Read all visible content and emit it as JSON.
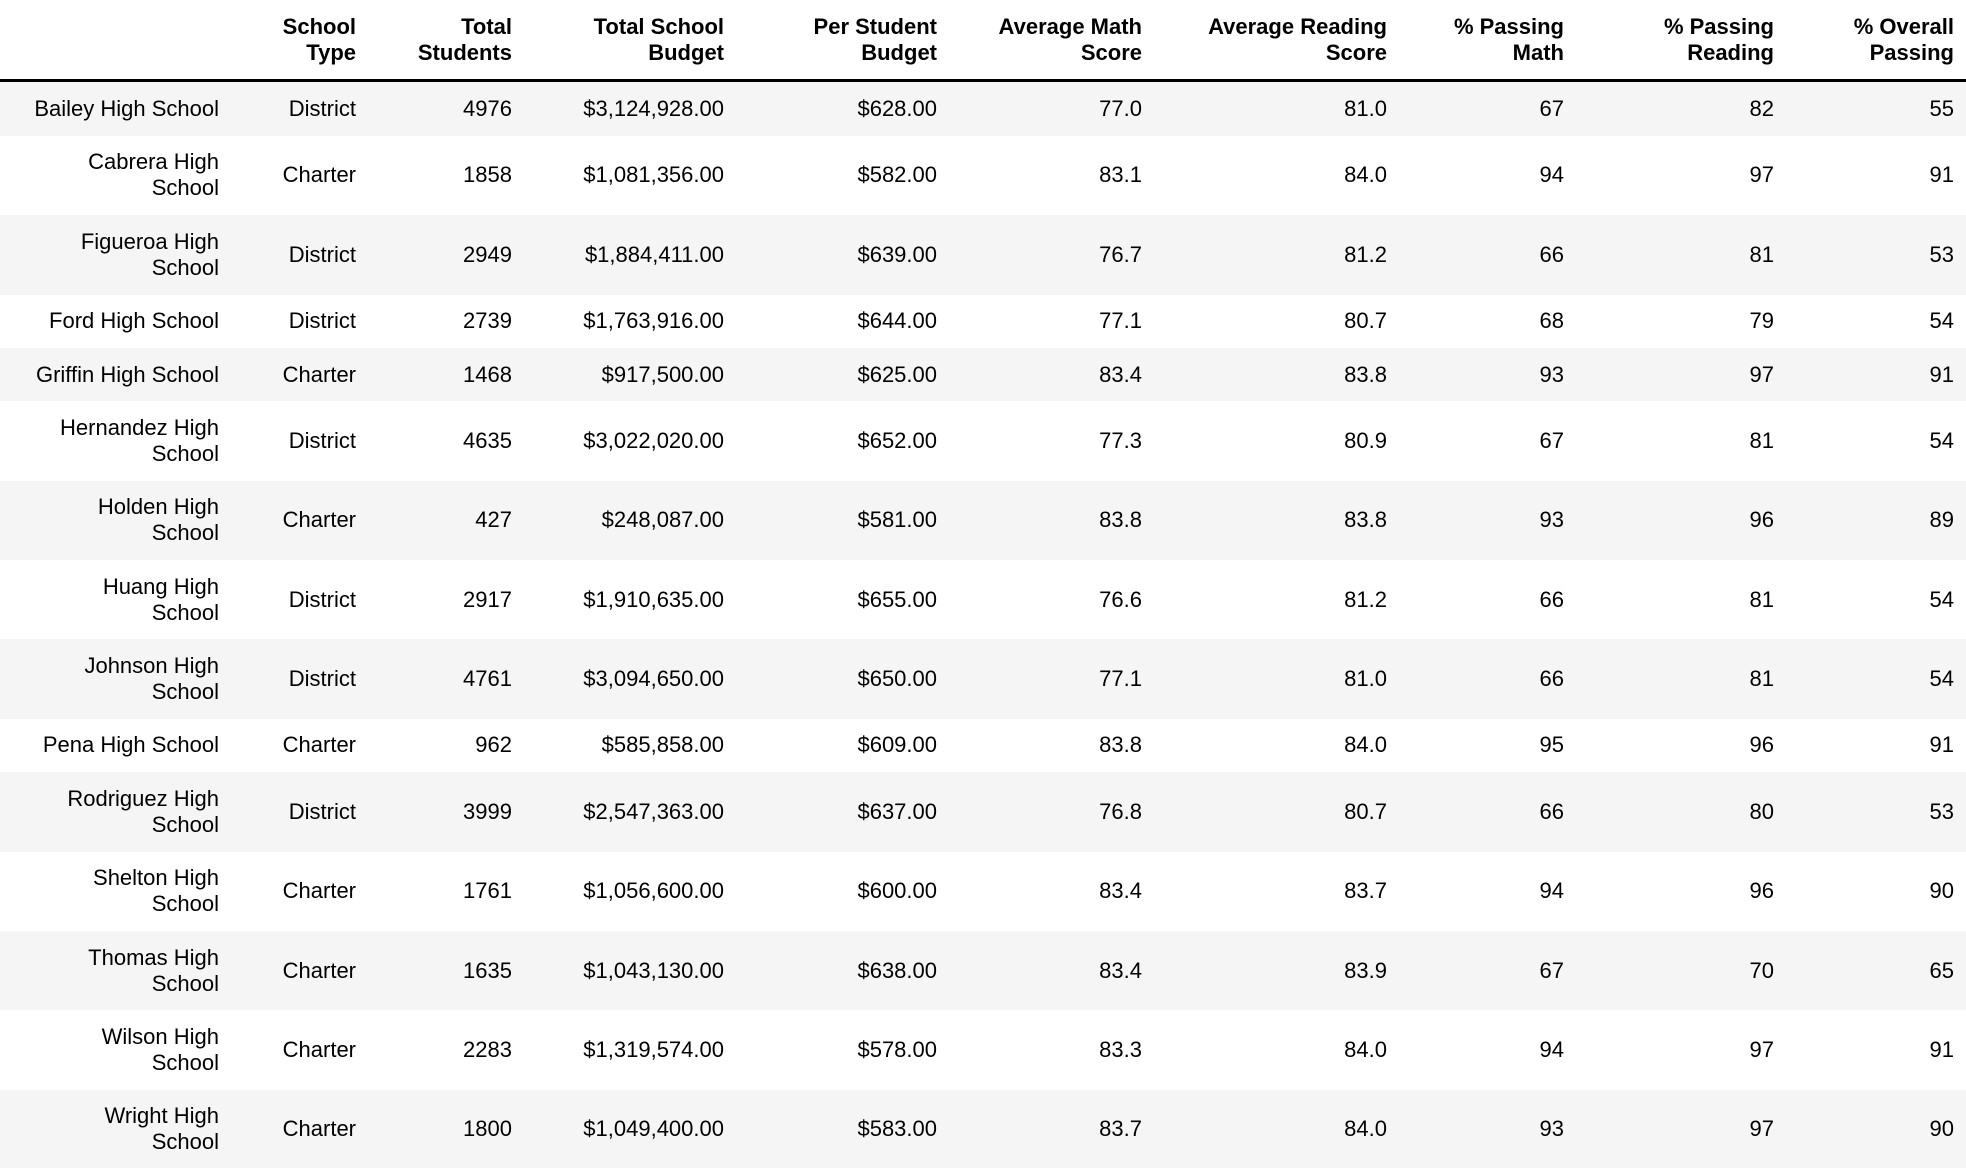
{
  "colors": {
    "stripe": "#f5f5f5",
    "text": "#000000",
    "background": "#ffffff",
    "header_border": "#000000"
  },
  "chart_data": {
    "type": "table",
    "columns": [
      {
        "id": "school_name",
        "label": ""
      },
      {
        "id": "school_type",
        "label": "School\nType"
      },
      {
        "id": "total_students",
        "label": "Total\nStudents"
      },
      {
        "id": "total_school_budget",
        "label": "Total School\nBudget"
      },
      {
        "id": "per_student_budget",
        "label": "Per Student\nBudget"
      },
      {
        "id": "average_math_score",
        "label": "Average Math\nScore"
      },
      {
        "id": "average_reading_score",
        "label": "Average Reading\nScore"
      },
      {
        "id": "pct_passing_math",
        "label": "% Passing\nMath"
      },
      {
        "id": "pct_passing_reading",
        "label": "% Passing\nReading"
      },
      {
        "id": "pct_overall_passing",
        "label": "% Overall\nPassing"
      }
    ],
    "rows": [
      {
        "name": "Bailey High School",
        "cells": [
          "District",
          "4976",
          "$3,124,928.00",
          "$628.00",
          "77.0",
          "81.0",
          "67",
          "82",
          "55"
        ]
      },
      {
        "name": "Cabrera High\nSchool",
        "cells": [
          "Charter",
          "1858",
          "$1,081,356.00",
          "$582.00",
          "83.1",
          "84.0",
          "94",
          "97",
          "91"
        ]
      },
      {
        "name": "Figueroa High\nSchool",
        "cells": [
          "District",
          "2949",
          "$1,884,411.00",
          "$639.00",
          "76.7",
          "81.2",
          "66",
          "81",
          "53"
        ]
      },
      {
        "name": "Ford High School",
        "cells": [
          "District",
          "2739",
          "$1,763,916.00",
          "$644.00",
          "77.1",
          "80.7",
          "68",
          "79",
          "54"
        ]
      },
      {
        "name": "Griffin High School",
        "cells": [
          "Charter",
          "1468",
          "$917,500.00",
          "$625.00",
          "83.4",
          "83.8",
          "93",
          "97",
          "91"
        ]
      },
      {
        "name": "Hernandez High\nSchool",
        "cells": [
          "District",
          "4635",
          "$3,022,020.00",
          "$652.00",
          "77.3",
          "80.9",
          "67",
          "81",
          "54"
        ]
      },
      {
        "name": "Holden High\nSchool",
        "cells": [
          "Charter",
          "427",
          "$248,087.00",
          "$581.00",
          "83.8",
          "83.8",
          "93",
          "96",
          "89"
        ]
      },
      {
        "name": "Huang High\nSchool",
        "cells": [
          "District",
          "2917",
          "$1,910,635.00",
          "$655.00",
          "76.6",
          "81.2",
          "66",
          "81",
          "54"
        ]
      },
      {
        "name": "Johnson High\nSchool",
        "cells": [
          "District",
          "4761",
          "$3,094,650.00",
          "$650.00",
          "77.1",
          "81.0",
          "66",
          "81",
          "54"
        ]
      },
      {
        "name": "Pena High School",
        "cells": [
          "Charter",
          "962",
          "$585,858.00",
          "$609.00",
          "83.8",
          "84.0",
          "95",
          "96",
          "91"
        ]
      },
      {
        "name": "Rodriguez High\nSchool",
        "cells": [
          "District",
          "3999",
          "$2,547,363.00",
          "$637.00",
          "76.8",
          "80.7",
          "66",
          "80",
          "53"
        ]
      },
      {
        "name": "Shelton High\nSchool",
        "cells": [
          "Charter",
          "1761",
          "$1,056,600.00",
          "$600.00",
          "83.4",
          "83.7",
          "94",
          "96",
          "90"
        ]
      },
      {
        "name": "Thomas High\nSchool",
        "cells": [
          "Charter",
          "1635",
          "$1,043,130.00",
          "$638.00",
          "83.4",
          "83.9",
          "67",
          "70",
          "65"
        ]
      },
      {
        "name": "Wilson High\nSchool",
        "cells": [
          "Charter",
          "2283",
          "$1,319,574.00",
          "$578.00",
          "83.3",
          "84.0",
          "94",
          "97",
          "91"
        ]
      },
      {
        "name": "Wright High\nSchool",
        "cells": [
          "Charter",
          "1800",
          "$1,049,400.00",
          "$583.00",
          "83.7",
          "84.0",
          "93",
          "97",
          "90"
        ]
      }
    ]
  }
}
